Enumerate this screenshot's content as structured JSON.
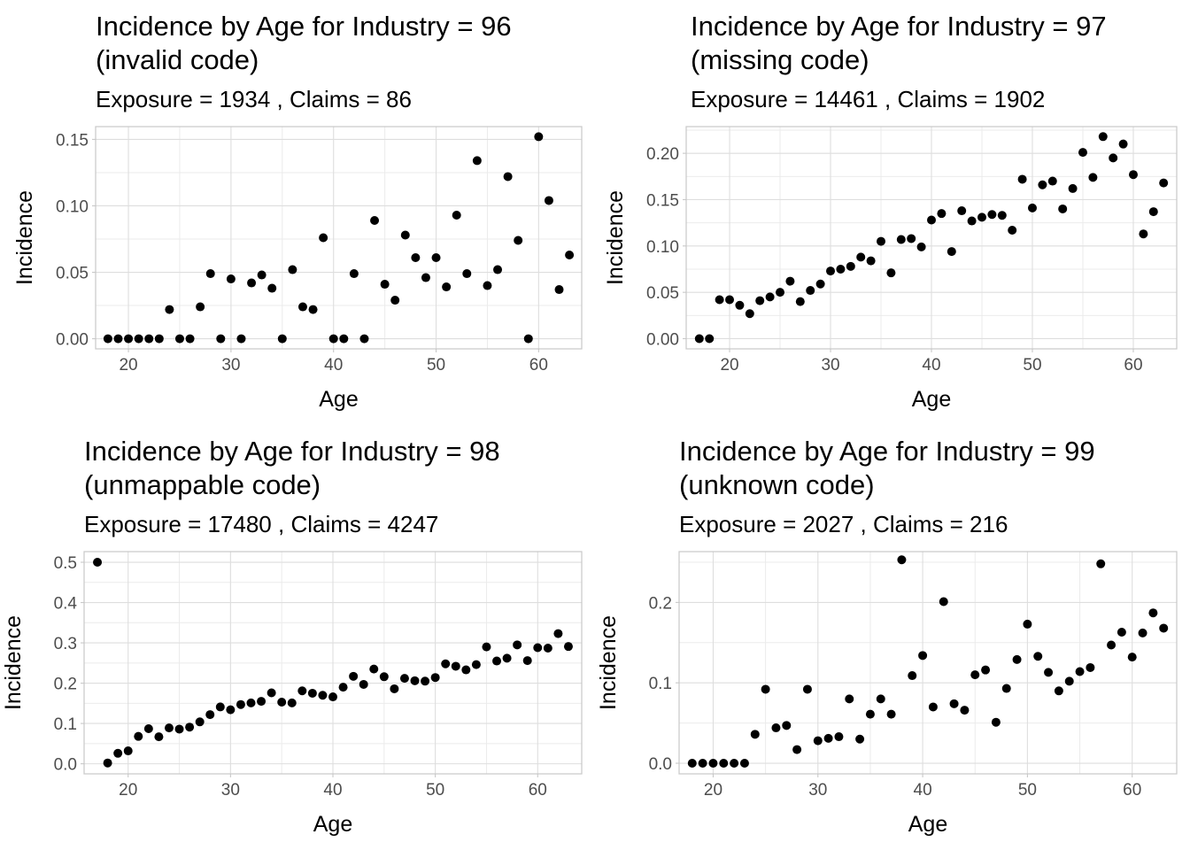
{
  "chart_data": [
    {
      "type": "scatter",
      "title_line1": "Incidence by Age for Industry = 96",
      "title_line2": "(invalid code)",
      "subtitle": "Exposure = 1934 , Claims =  86",
      "xlabel": "Age",
      "ylabel": "Incidence",
      "xlim": [
        16.8,
        64.2
      ],
      "ylim": [
        -0.0076,
        0.1596
      ],
      "xticks": [
        20,
        30,
        40,
        50,
        60
      ],
      "yticks": [
        0.0,
        0.05,
        0.1,
        0.15
      ],
      "ytick_labels": [
        "0.00",
        "0.05",
        "0.10",
        "0.15"
      ],
      "grid": true,
      "points": [
        [
          18,
          0
        ],
        [
          19,
          0
        ],
        [
          20,
          0
        ],
        [
          21,
          0
        ],
        [
          22,
          0
        ],
        [
          23,
          0
        ],
        [
          24,
          0.022
        ],
        [
          25,
          0
        ],
        [
          26,
          0
        ],
        [
          27,
          0.024
        ],
        [
          28,
          0.049
        ],
        [
          29,
          0
        ],
        [
          30,
          0.045
        ],
        [
          31,
          0
        ],
        [
          32,
          0.042
        ],
        [
          33,
          0.048
        ],
        [
          34,
          0.038
        ],
        [
          35,
          0
        ],
        [
          36,
          0.052
        ],
        [
          37,
          0.024
        ],
        [
          38,
          0.022
        ],
        [
          39,
          0.076
        ],
        [
          40,
          0
        ],
        [
          41,
          0
        ],
        [
          42,
          0.049
        ],
        [
          43,
          0
        ],
        [
          44,
          0.089
        ],
        [
          45,
          0.041
        ],
        [
          46,
          0.029
        ],
        [
          47,
          0.078
        ],
        [
          48,
          0.061
        ],
        [
          49,
          0.046
        ],
        [
          50,
          0.061
        ],
        [
          51,
          0.039
        ],
        [
          52,
          0.093
        ],
        [
          53,
          0.049
        ],
        [
          54,
          0.134
        ],
        [
          55,
          0.04
        ],
        [
          56,
          0.052
        ],
        [
          57,
          0.122
        ],
        [
          58,
          0.074
        ],
        [
          59,
          0
        ],
        [
          60,
          0.152
        ],
        [
          61,
          0.104
        ],
        [
          62,
          0.037
        ],
        [
          63,
          0.063
        ]
      ]
    },
    {
      "type": "scatter",
      "title_line1": "Incidence by Age for Industry = 97",
      "title_line2": "(missing code)",
      "subtitle": "Exposure = 14461 , Claims =  1902",
      "xlabel": "Age",
      "ylabel": "Incidence",
      "xlim": [
        15.7,
        64.3
      ],
      "ylim": [
        -0.011,
        0.2288
      ],
      "xticks": [
        20,
        30,
        40,
        50,
        60
      ],
      "yticks": [
        0.0,
        0.05,
        0.1,
        0.15,
        0.2
      ],
      "ytick_labels": [
        "0.00",
        "0.05",
        "0.10",
        "0.15",
        "0.20"
      ],
      "grid": true,
      "points": [
        [
          17,
          0
        ],
        [
          18,
          0
        ],
        [
          19,
          0.042
        ],
        [
          20,
          0.042
        ],
        [
          21,
          0.036
        ],
        [
          22,
          0.027
        ],
        [
          23,
          0.041
        ],
        [
          24,
          0.045
        ],
        [
          25,
          0.05
        ],
        [
          26,
          0.062
        ],
        [
          27,
          0.04
        ],
        [
          28,
          0.052
        ],
        [
          29,
          0.059
        ],
        [
          30,
          0.073
        ],
        [
          31,
          0.075
        ],
        [
          32,
          0.078
        ],
        [
          33,
          0.088
        ],
        [
          34,
          0.084
        ],
        [
          35,
          0.105
        ],
        [
          36,
          0.071
        ],
        [
          37,
          0.107
        ],
        [
          38,
          0.108
        ],
        [
          39,
          0.099
        ],
        [
          40,
          0.128
        ],
        [
          41,
          0.135
        ],
        [
          42,
          0.094
        ],
        [
          43,
          0.138
        ],
        [
          44,
          0.127
        ],
        [
          45,
          0.131
        ],
        [
          46,
          0.134
        ],
        [
          47,
          0.133
        ],
        [
          48,
          0.117
        ],
        [
          49,
          0.172
        ],
        [
          50,
          0.141
        ],
        [
          51,
          0.166
        ],
        [
          52,
          0.17
        ],
        [
          53,
          0.14
        ],
        [
          54,
          0.162
        ],
        [
          55,
          0.201
        ],
        [
          56,
          0.174
        ],
        [
          57,
          0.218
        ],
        [
          58,
          0.195
        ],
        [
          59,
          0.21
        ],
        [
          60,
          0.177
        ],
        [
          61,
          0.113
        ],
        [
          62,
          0.137
        ],
        [
          63,
          0.168
        ]
      ]
    },
    {
      "type": "scatter",
      "title_line1": "Incidence by Age for Industry = 98",
      "title_line2": "(unmappable code)",
      "subtitle": "Exposure = 17480 , Claims =  4247",
      "xlabel": "Age",
      "ylabel": "Incidence",
      "xlim": [
        15.7,
        64.3
      ],
      "ylim": [
        -0.025,
        0.5264
      ],
      "xticks": [
        20,
        30,
        40,
        50,
        60
      ],
      "yticks": [
        0.0,
        0.1,
        0.2,
        0.3,
        0.4,
        0.5
      ],
      "ytick_labels": [
        "0.0",
        "0.1",
        "0.2",
        "0.3",
        "0.4",
        "0.5"
      ],
      "grid": true,
      "points": [
        [
          17,
          0.5
        ],
        [
          18,
          0.002
        ],
        [
          19,
          0.026
        ],
        [
          20,
          0.032
        ],
        [
          21,
          0.068
        ],
        [
          22,
          0.087
        ],
        [
          23,
          0.067
        ],
        [
          24,
          0.089
        ],
        [
          25,
          0.086
        ],
        [
          26,
          0.091
        ],
        [
          27,
          0.104
        ],
        [
          28,
          0.122
        ],
        [
          29,
          0.141
        ],
        [
          30,
          0.134
        ],
        [
          31,
          0.147
        ],
        [
          32,
          0.151
        ],
        [
          33,
          0.155
        ],
        [
          34,
          0.176
        ],
        [
          35,
          0.153
        ],
        [
          36,
          0.151
        ],
        [
          37,
          0.181
        ],
        [
          38,
          0.175
        ],
        [
          39,
          0.17
        ],
        [
          40,
          0.166
        ],
        [
          41,
          0.19
        ],
        [
          42,
          0.217
        ],
        [
          43,
          0.197
        ],
        [
          44,
          0.235
        ],
        [
          45,
          0.216
        ],
        [
          46,
          0.186
        ],
        [
          47,
          0.212
        ],
        [
          48,
          0.206
        ],
        [
          49,
          0.205
        ],
        [
          50,
          0.214
        ],
        [
          51,
          0.248
        ],
        [
          52,
          0.242
        ],
        [
          53,
          0.233
        ],
        [
          54,
          0.246
        ],
        [
          55,
          0.29
        ],
        [
          56,
          0.255
        ],
        [
          57,
          0.262
        ],
        [
          58,
          0.295
        ],
        [
          59,
          0.256
        ],
        [
          60,
          0.288
        ],
        [
          61,
          0.287
        ],
        [
          62,
          0.323
        ],
        [
          63,
          0.291
        ]
      ]
    },
    {
      "type": "scatter",
      "title_line1": "Incidence by Age for Industry = 99",
      "title_line2": "(unknown code)",
      "subtitle": "Exposure = 2027 , Claims =  216",
      "xlabel": "Age",
      "ylabel": "Incidence",
      "xlim": [
        16.75,
        64.25
      ],
      "ylim": [
        -0.0132,
        0.2632
      ],
      "xticks": [
        20,
        30,
        40,
        50,
        60
      ],
      "yticks": [
        0.0,
        0.1,
        0.2
      ],
      "ytick_labels": [
        "0.0",
        "0.1",
        "0.2"
      ],
      "grid": true,
      "points": [
        [
          18,
          0
        ],
        [
          19,
          0
        ],
        [
          20,
          0
        ],
        [
          21,
          0
        ],
        [
          22,
          0
        ],
        [
          23,
          0
        ],
        [
          24,
          0.036
        ],
        [
          25,
          0.092
        ],
        [
          26,
          0.044
        ],
        [
          27,
          0.047
        ],
        [
          28,
          0.017
        ],
        [
          29,
          0.092
        ],
        [
          30,
          0.028
        ],
        [
          31,
          0.031
        ],
        [
          32,
          0.033
        ],
        [
          33,
          0.08
        ],
        [
          34,
          0.03
        ],
        [
          35,
          0.061
        ],
        [
          36,
          0.08
        ],
        [
          37,
          0.061
        ],
        [
          38,
          0.253
        ],
        [
          39,
          0.109
        ],
        [
          40,
          0.134
        ],
        [
          41,
          0.07
        ],
        [
          42,
          0.201
        ],
        [
          43,
          0.074
        ],
        [
          44,
          0.066
        ],
        [
          45,
          0.11
        ],
        [
          46,
          0.116
        ],
        [
          47,
          0.051
        ],
        [
          48,
          0.093
        ],
        [
          49,
          0.129
        ],
        [
          50,
          0.173
        ],
        [
          51,
          0.133
        ],
        [
          52,
          0.113
        ],
        [
          53,
          0.09
        ],
        [
          54,
          0.102
        ],
        [
          55,
          0.114
        ],
        [
          56,
          0.119
        ],
        [
          57,
          0.248
        ],
        [
          58,
          0.147
        ],
        [
          59,
          0.163
        ],
        [
          60,
          0.132
        ],
        [
          61,
          0.162
        ],
        [
          62,
          0.187
        ],
        [
          63,
          0.168
        ]
      ]
    }
  ]
}
